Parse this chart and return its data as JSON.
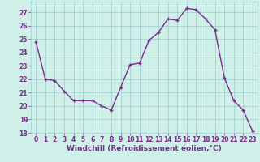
{
  "x": [
    0,
    1,
    2,
    3,
    4,
    5,
    6,
    7,
    8,
    9,
    10,
    11,
    12,
    13,
    14,
    15,
    16,
    17,
    18,
    19,
    20,
    21,
    22,
    23
  ],
  "y": [
    24.8,
    22.0,
    21.9,
    21.1,
    20.4,
    20.4,
    20.4,
    20.0,
    19.7,
    21.4,
    23.1,
    23.2,
    24.9,
    25.5,
    26.5,
    26.4,
    27.3,
    27.2,
    26.5,
    25.7,
    22.1,
    20.4,
    19.7,
    18.1
  ],
  "line_color": "#7b2d8b",
  "marker": "+",
  "bg_color": "#cef0e8",
  "grid_color": "#99cccc",
  "xlabel": "Windchill (Refroidissement éolien,°C)",
  "ylim": [
    18,
    27.8
  ],
  "xlim": [
    -0.5,
    23.5
  ],
  "yticks": [
    18,
    19,
    20,
    21,
    22,
    23,
    24,
    25,
    26,
    27
  ],
  "xticks": [
    0,
    1,
    2,
    3,
    4,
    5,
    6,
    7,
    8,
    9,
    10,
    11,
    12,
    13,
    14,
    15,
    16,
    17,
    18,
    19,
    20,
    21,
    22,
    23
  ],
  "tick_fontsize": 5.5,
  "xlabel_fontsize": 6.5,
  "line_width": 1.0,
  "marker_size": 3.5,
  "marker_edge_width": 1.0
}
